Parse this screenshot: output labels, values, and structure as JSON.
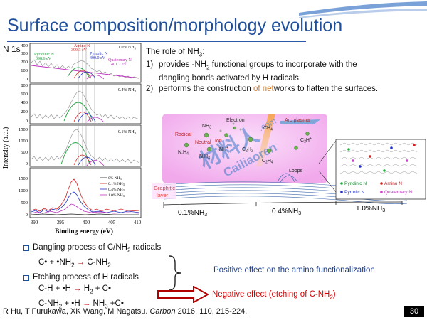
{
  "slide": {
    "title": "Surface composition/morphology evolution",
    "spectrum_label": "N 1s",
    "page_number": "30"
  },
  "role": {
    "heading_pre": "The role of NH",
    "heading_sub": "3",
    "heading_post": ":",
    "item1": {
      "num": "1)",
      "line1_pre": "provides -NH",
      "line1_sub": "2",
      "line1_post": " functional groups to incorporate with the",
      "line2": "dangling bonds activated by H radicals;"
    },
    "item2": {
      "num": "2)",
      "pre": "performs the construction ",
      "highlight1": "of",
      "mid": " ",
      "highlight2": "net",
      "post": "works to flatten the surfaces."
    }
  },
  "xps": {
    "xlabel": "Binding energy (eV)",
    "ylabel": "Intensity (a.u.)",
    "x_ticks": [
      "390",
      "395",
      "400",
      "405",
      "410"
    ],
    "panels": [
      {
        "label": "1.0% NH",
        "sub": "3",
        "ticks": [
          "0",
          "100",
          "200",
          "300",
          "400"
        ]
      },
      {
        "label": "0.4% NH",
        "sub": "3",
        "ticks": [
          "0",
          "200",
          "400",
          "600",
          "800"
        ]
      },
      {
        "label": "0.1% NH",
        "sub": "3",
        "ticks": [
          "0",
          "500",
          "1000",
          "1500"
        ]
      },
      {
        "ticks": [
          "0",
          "500",
          "1000",
          "1500"
        ]
      }
    ],
    "peaks": {
      "pyridinic": {
        "name": "Pyridinic N",
        "value": "398.6 eV"
      },
      "amino": {
        "name": "Amino N",
        "value": "399.3 eV"
      },
      "pyrrolic": {
        "name": "Pyrrolic N",
        "value": "400.0 eV"
      },
      "quaternary": {
        "name": "Quaternary N",
        "value": "401.7 eV"
      }
    },
    "legend": [
      {
        "label": "0% NH",
        "sub": "3",
        "color": "#222222"
      },
      {
        "label": "0.1% NH",
        "sub": "3",
        "color": "#d02020"
      },
      {
        "label": "0.4% NH",
        "sub": "3",
        "color": "#2030c0"
      },
      {
        "label": "1.0% NH",
        "sub": "3",
        "color": "#c030c0"
      }
    ]
  },
  "diagram": {
    "electron": "Electron",
    "arc_plasma": "Arc plasma",
    "radical": "Radical",
    "neutral": "Neutral",
    "ion": "Ion",
    "species": {
      "nh3": "NH",
      "nh3_sub": "3",
      "nh4": "N.H",
      "nh4_sub": "4",
      "nh3b": "N.H",
      "nh3b_sub": "3",
      "nhp": "NH",
      "nhp_sub": "+",
      "ch4": "CH",
      "ch4_sub": "4",
      "c2h2": "C",
      "c2h2_sub": "2",
      "c2h2_h": "H",
      "c2h2_sub2": "2",
      "c2h4": "C",
      "c2h4_sub": "2",
      "c2h4_h": "H",
      "c2h4_sub2": "4",
      "c2hp": "C",
      "c2hp_sub": "2",
      "c2hp_h": "H",
      "c2hp_sup": "+"
    },
    "loops": "Loops",
    "graphitic_layer_1": "Graphitic",
    "graphitic_layer_2": "layer",
    "watermark_1": "材料人",
    "watermark_2": "Cailiaoren",
    "watermark_3": ".com",
    "inset_legend": [
      {
        "label": "Pyridinic N",
        "color": "#20b040"
      },
      {
        "label": "Amino N",
        "color": "#d02020"
      },
      {
        "label": "Pyrrolic N",
        "color": "#2030c0"
      },
      {
        "label": "Quaternary N",
        "color": "#d040d0"
      }
    ],
    "conc_labels": [
      {
        "pre": "0.1%NH",
        "sub": "3"
      },
      {
        "pre": "0.4%NH",
        "sub": "3"
      },
      {
        "pre": "1.0%NH",
        "sub": "3"
      }
    ]
  },
  "processes": {
    "heading1_pre": "Dangling process of C/NH",
    "heading1_sub": "2",
    "heading1_post": " radicals",
    "eq1_pre": "C•  + •NH",
    "eq1_sub": "2",
    "eq1_mid": " ",
    "eq1_arrow": "→",
    "eq1_post": " C-NH",
    "eq1_sub2": "2",
    "heading2": "Etching process of H radicals",
    "eq2_pre": "C-H   +  •H ",
    "eq2_arrow": "→",
    "eq2_mid": " H",
    "eq2_sub": "2",
    "eq2_post": " + C•",
    "eq3_pre": "C-NH",
    "eq3_sub": "2",
    "eq3_mid": " + •H ",
    "eq3_arrow": "→",
    "eq3_mid2": " NH",
    "eq3_sub2": "3",
    "eq3_post": " +C•",
    "positive": "Positive effect on the amino functionalization",
    "negative_pre": "Negative effect (etching of C-NH",
    "negative_sub": "2",
    "negative_post": ")"
  },
  "citation": {
    "authors": "R Hu, T Furukawa, XK Wang, M Nagatsu. ",
    "journal": "Carbon",
    "rest": " 2016, 110, 215-224."
  },
  "colors": {
    "title": "#1f4e9a",
    "negative": "#d00000",
    "positive": "#1f3f8a",
    "plasma": "#f4b8f0"
  }
}
